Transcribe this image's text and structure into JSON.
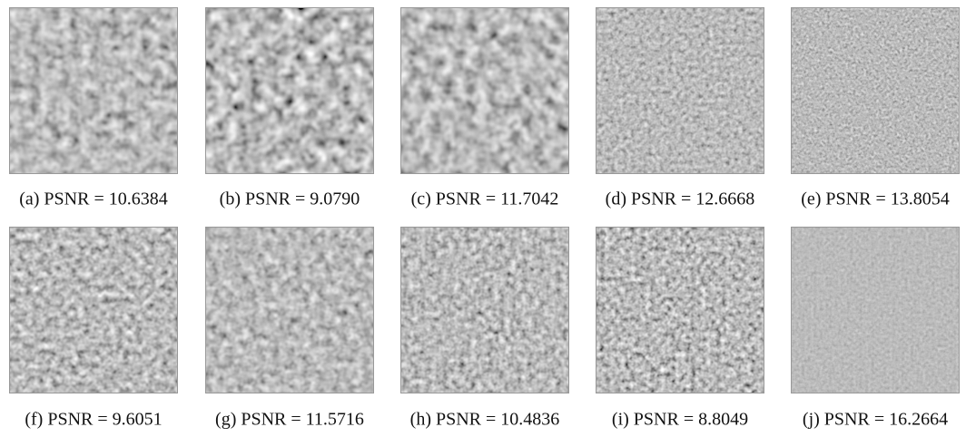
{
  "figure": {
    "panels": [
      {
        "caption": "(a) PSNR = 10.6384"
      },
      {
        "caption": "(b) PSNR = 9.0790"
      },
      {
        "caption": "(c) PSNR = 11.7042"
      },
      {
        "caption": "(d) PSNR = 12.6668"
      },
      {
        "caption": "(e) PSNR = 13.8054"
      },
      {
        "caption": "(f) PSNR = 9.6051"
      },
      {
        "caption": "(g) PSNR = 11.5716"
      },
      {
        "caption": "(h) PSNR = 10.4836"
      },
      {
        "caption": "(i) PSNR = 8.8049"
      },
      {
        "caption": "(j) PSNR = 16.2664"
      }
    ]
  }
}
